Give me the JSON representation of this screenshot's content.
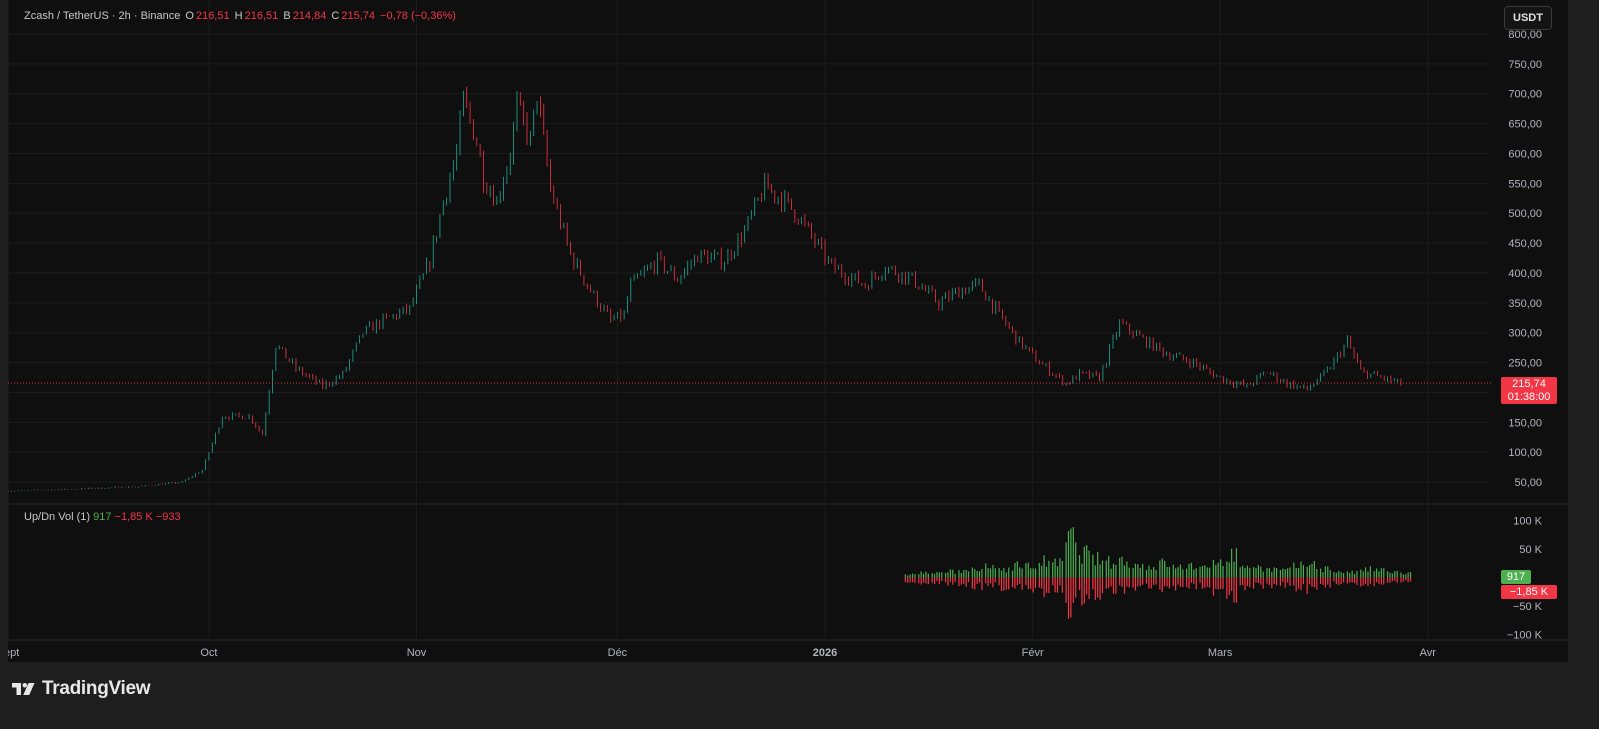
{
  "legend": {
    "symbol": "Zcash / TetherUS · 2h · Binance",
    "o_label": "O",
    "o_value": "216,51",
    "h_label": "H",
    "h_value": "216,51",
    "b_label": "B",
    "b_value": "214,84",
    "c_label": "C",
    "c_value": "215,74",
    "change": "−0,78 (−0,36%)"
  },
  "currency_button": "USDT",
  "last_price": {
    "price": "215,74",
    "countdown": "01:38:00"
  },
  "volume_legend": {
    "title": "Up/Dn Vol (1)",
    "up": "917",
    "down": "−1,85 K",
    "delta": "−933"
  },
  "volume_tags": {
    "up": "917",
    "down": "−1,85 K"
  },
  "brand": "TradingView",
  "colors": {
    "up": "#22ab94",
    "down": "#f23645",
    "vol_up": "#4caf50",
    "background": "#0f0f0f"
  },
  "chart_data": [
    {
      "type": "line",
      "style": "candlestick",
      "title": "Zcash / TetherUS · 2h · Binance",
      "y_ticks": [
        "800,00",
        "750,00",
        "700,00",
        "650,00",
        "600,00",
        "550,00",
        "500,00",
        "450,00",
        "400,00",
        "350,00",
        "300,00",
        "250,00",
        "200,00",
        "150,00",
        "100,00",
        "50,00"
      ],
      "ylim": [
        20,
        815
      ],
      "x_ticks": [
        {
          "label": "Sept",
          "date": "2025-09-01"
        },
        {
          "label": "Oct",
          "date": "2025-10-01"
        },
        {
          "label": "Nov",
          "date": "2025-11-01"
        },
        {
          "label": "Déc",
          "date": "2025-12-01"
        },
        {
          "label": "2026",
          "date": "2026-01-01",
          "bold": true
        },
        {
          "label": "Févr",
          "date": "2026-02-01"
        },
        {
          "label": "Mars",
          "date": "2026-03-01"
        },
        {
          "label": "Avr",
          "date": "2026-04-01"
        }
      ],
      "xlim": [
        "2025-09-01",
        "2026-04-10"
      ],
      "series": [
        {
          "x": [
            "2025-09-01",
            "2025-09-10",
            "2025-09-20",
            "2025-09-27",
            "2025-09-30",
            "2025-10-03",
            "2025-10-07",
            "2025-10-09",
            "2025-10-11",
            "2025-10-14",
            "2025-10-18",
            "2025-10-21",
            "2025-10-24",
            "2025-10-27",
            "2025-10-31",
            "2025-11-03",
            "2025-11-05",
            "2025-11-07",
            "2025-11-08",
            "2025-11-10",
            "2025-11-11",
            "2025-11-13",
            "2025-11-15",
            "2025-11-16",
            "2025-11-18",
            "2025-11-19",
            "2025-11-21",
            "2025-11-24",
            "2025-11-27",
            "2025-11-30",
            "2025-12-02",
            "2025-12-03",
            "2025-12-07",
            "2025-12-10",
            "2025-12-13",
            "2025-12-17",
            "2025-12-20",
            "2025-12-23",
            "2025-12-26",
            "2025-12-28",
            "2026-01-02",
            "2026-01-07",
            "2026-01-10",
            "2026-01-14",
            "2026-01-18",
            "2026-01-21",
            "2026-01-24",
            "2026-01-27",
            "2026-01-30",
            "2026-02-02",
            "2026-02-06",
            "2026-02-08",
            "2026-02-11",
            "2026-02-14",
            "2026-02-18",
            "2026-02-21",
            "2026-02-25",
            "2026-02-28",
            "2026-03-02",
            "2026-03-05",
            "2026-03-08",
            "2026-03-11",
            "2026-03-14",
            "2026-03-17",
            "2026-03-20",
            "2026-03-22",
            "2026-03-25",
            "2026-03-28"
          ],
          "y": [
            35,
            38,
            42,
            50,
            70,
            160,
            160,
            130,
            280,
            240,
            210,
            230,
            300,
            320,
            340,
            420,
            520,
            600,
            690,
            620,
            560,
            520,
            600,
            680,
            620,
            700,
            540,
            430,
            370,
            320,
            330,
            380,
            420,
            390,
            430,
            420,
            470,
            545,
            520,
            495,
            410,
            380,
            410,
            390,
            350,
            370,
            380,
            330,
            285,
            250,
            215,
            230,
            225,
            315,
            285,
            265,
            250,
            230,
            220,
            210,
            235,
            215,
            205,
            235,
            285,
            235,
            225,
            215
          ]
        }
      ]
    },
    {
      "type": "bar",
      "title": "Up/Dn Vol (1)",
      "y_ticks": [
        "100 K",
        "50 K",
        "−50 K",
        "−100 K"
      ],
      "ylim": [
        -110,
        110
      ],
      "x_range": [
        "2026-01-13",
        "2026-03-28"
      ],
      "series": [
        {
          "name": "Up",
          "values": [
            8,
            12,
            10,
            15,
            20,
            18,
            25,
            22,
            30,
            28,
            40,
            35,
            95,
            60,
            45,
            38,
            42,
            30,
            28,
            35,
            25,
            30,
            22,
            45,
            55,
            30,
            25,
            20,
            18,
            28,
            35,
            22,
            15,
            12,
            20,
            18,
            14,
            10
          ]
        },
        {
          "name": "Dn",
          "values": [
            -10,
            -15,
            -12,
            -18,
            -20,
            -22,
            -20,
            -25,
            -28,
            -30,
            -35,
            -30,
            -75,
            -50,
            -40,
            -35,
            -32,
            -28,
            -25,
            -30,
            -28,
            -22,
            -20,
            -35,
            -45,
            -28,
            -22,
            -20,
            -18,
            -25,
            -30,
            -20,
            -15,
            -14,
            -18,
            -16,
            -12,
            -10
          ]
        }
      ]
    }
  ]
}
